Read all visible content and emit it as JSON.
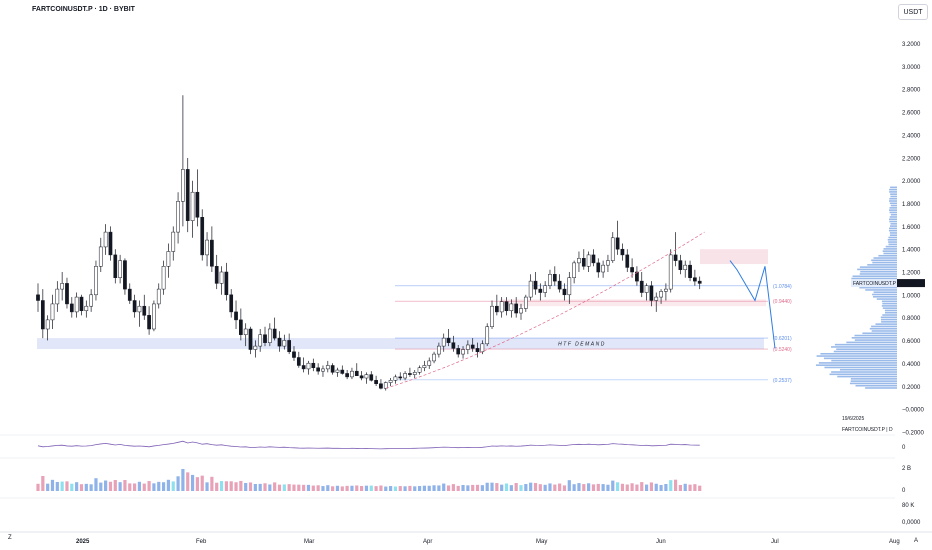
{
  "header": {
    "symbol_title": "FARTCOINUSDT.P · 1D · BYBIT",
    "quote_currency": "USDT"
  },
  "colors": {
    "up": "#ffffff",
    "down": "#131722",
    "wick": "#131722",
    "demand_zone": "#d7def5",
    "fib_blue": "#5b8def",
    "fib_pink": "#e06a8a",
    "projection": "#2f7de1",
    "volume_blue": "#8fb3e8",
    "volume_pink": "#e8a2b8",
    "volume_cyan": "#8ee0ee"
  },
  "annotations": {
    "demand_label": "HTF DEMAND",
    "last_price_tag": "FARTCOINUSDT.P",
    "last_price_value": "1.1028",
    "date_note": "19/6/2025",
    "symbol_note": "FARTCOINUSDT.P | D"
  },
  "fib_levels": [
    {
      "label": "(1.0784)",
      "value": 1.0784
    },
    {
      "label": "(0.9440)",
      "value": 0.944
    },
    {
      "label": "(0.6201)",
      "value": 0.6201
    },
    {
      "label": "(0.5240)",
      "value": 0.524
    },
    {
      "label": "(0.2537)",
      "value": 0.2537
    }
  ],
  "corner": {
    "left": "Z",
    "right": "A"
  },
  "chart_data": {
    "type": "candlestick",
    "title": "FARTCOINUSDT.P · 1D · BYBIT",
    "price_axis_labels": [
      "3.2000",
      "3.0000",
      "2.8000",
      "2.6000",
      "2.4000",
      "2.2000",
      "2.0000",
      "1.8000",
      "1.6000",
      "1.4000",
      "1.2000",
      "1.0000",
      "0.8000",
      "0.6000",
      "0.4000",
      "0.2000",
      "−0.0000",
      "−0.2000"
    ],
    "oscillator_axis_labels": [
      "0"
    ],
    "volume_axis_labels": [
      "2 B",
      "0"
    ],
    "volume2_axis_labels": [
      "80 K",
      "0,0000"
    ],
    "x_tick_labels": [
      "2025",
      "Feb",
      "Mar",
      "Apr",
      "May",
      "Jun",
      "Jul",
      "Aug"
    ],
    "ylim": [
      -0.3,
      3.35
    ],
    "htf_demand_zone": [
      0.524,
      0.6201
    ],
    "supply_zone": [
      1.27,
      1.4
    ],
    "minor_zone": [
      0.9,
      0.96
    ],
    "candles": [
      [
        1.0,
        1.1,
        0.85,
        0.95
      ],
      [
        0.95,
        1.05,
        0.62,
        0.7
      ],
      [
        0.7,
        0.82,
        0.6,
        0.78
      ],
      [
        0.78,
        1.0,
        0.7,
        0.92
      ],
      [
        0.92,
        1.12,
        0.85,
        1.05
      ],
      [
        1.05,
        1.2,
        0.95,
        1.1
      ],
      [
        1.1,
        1.15,
        0.88,
        0.92
      ],
      [
        0.92,
        0.98,
        0.8,
        0.85
      ],
      [
        0.85,
        1.02,
        0.8,
        0.98
      ],
      [
        0.98,
        1.0,
        0.82,
        0.86
      ],
      [
        0.86,
        0.95,
        0.8,
        0.9
      ],
      [
        0.9,
        1.05,
        0.85,
        1.0
      ],
      [
        1.0,
        1.3,
        0.95,
        1.25
      ],
      [
        1.25,
        1.5,
        1.2,
        1.42
      ],
      [
        1.42,
        1.62,
        1.35,
        1.55
      ],
      [
        1.55,
        1.6,
        1.3,
        1.35
      ],
      [
        1.35,
        1.4,
        1.1,
        1.15
      ],
      [
        1.15,
        1.35,
        1.1,
        1.3
      ],
      [
        1.3,
        1.32,
        1.0,
        1.05
      ],
      [
        1.05,
        1.1,
        0.92,
        0.95
      ],
      [
        0.95,
        1.0,
        0.8,
        0.85
      ],
      [
        0.85,
        0.95,
        0.72,
        0.9
      ],
      [
        0.9,
        1.0,
        0.78,
        0.82
      ],
      [
        0.82,
        0.9,
        0.65,
        0.7
      ],
      [
        0.7,
        0.95,
        0.68,
        0.92
      ],
      [
        0.92,
        1.1,
        0.88,
        1.05
      ],
      [
        1.05,
        1.3,
        1.0,
        1.25
      ],
      [
        1.25,
        1.45,
        1.15,
        1.38
      ],
      [
        1.38,
        1.6,
        1.3,
        1.55
      ],
      [
        1.55,
        1.9,
        1.45,
        1.82
      ],
      [
        1.82,
        2.75,
        1.6,
        2.1
      ],
      [
        2.1,
        2.2,
        1.55,
        1.65
      ],
      [
        1.65,
        2.0,
        1.5,
        1.9
      ],
      [
        1.9,
        2.1,
        1.6,
        1.68
      ],
      [
        1.68,
        1.75,
        1.3,
        1.35
      ],
      [
        1.35,
        1.55,
        1.25,
        1.48
      ],
      [
        1.48,
        1.6,
        1.2,
        1.25
      ],
      [
        1.25,
        1.35,
        1.05,
        1.1
      ],
      [
        1.1,
        1.25,
        1.0,
        1.2
      ],
      [
        1.2,
        1.28,
        0.95,
        1.0
      ],
      [
        1.0,
        1.05,
        0.8,
        0.85
      ],
      [
        0.85,
        0.95,
        0.7,
        0.78
      ],
      [
        0.78,
        0.88,
        0.6,
        0.65
      ],
      [
        0.65,
        0.75,
        0.55,
        0.7
      ],
      [
        0.7,
        0.72,
        0.48,
        0.52
      ],
      [
        0.52,
        0.6,
        0.45,
        0.55
      ],
      [
        0.55,
        0.7,
        0.5,
        0.65
      ],
      [
        0.65,
        0.72,
        0.55,
        0.58
      ],
      [
        0.58,
        0.75,
        0.55,
        0.7
      ],
      [
        0.7,
        0.8,
        0.6,
        0.62
      ],
      [
        0.62,
        0.68,
        0.5,
        0.55
      ],
      [
        0.55,
        0.65,
        0.52,
        0.6
      ],
      [
        0.6,
        0.66,
        0.48,
        0.5
      ],
      [
        0.5,
        0.55,
        0.42,
        0.45
      ],
      [
        0.45,
        0.5,
        0.36,
        0.38
      ],
      [
        0.38,
        0.45,
        0.32,
        0.35
      ],
      [
        0.35,
        0.42,
        0.3,
        0.4
      ],
      [
        0.4,
        0.44,
        0.33,
        0.36
      ],
      [
        0.36,
        0.4,
        0.3,
        0.33
      ],
      [
        0.33,
        0.38,
        0.28,
        0.35
      ],
      [
        0.35,
        0.42,
        0.32,
        0.38
      ],
      [
        0.38,
        0.4,
        0.3,
        0.32
      ],
      [
        0.32,
        0.36,
        0.28,
        0.34
      ],
      [
        0.34,
        0.38,
        0.3,
        0.31
      ],
      [
        0.31,
        0.34,
        0.26,
        0.28
      ],
      [
        0.28,
        0.36,
        0.26,
        0.33
      ],
      [
        0.33,
        0.4,
        0.3,
        0.29
      ],
      [
        0.29,
        0.33,
        0.25,
        0.27
      ],
      [
        0.27,
        0.32,
        0.22,
        0.3
      ],
      [
        0.3,
        0.33,
        0.24,
        0.25
      ],
      [
        0.25,
        0.29,
        0.2,
        0.22
      ],
      [
        0.22,
        0.26,
        0.17,
        0.18
      ],
      [
        0.18,
        0.24,
        0.16,
        0.23
      ],
      [
        0.23,
        0.27,
        0.2,
        0.25
      ],
      [
        0.25,
        0.3,
        0.22,
        0.28
      ],
      [
        0.28,
        0.32,
        0.25,
        0.27
      ],
      [
        0.27,
        0.33,
        0.25,
        0.31
      ],
      [
        0.31,
        0.36,
        0.28,
        0.3
      ],
      [
        0.3,
        0.34,
        0.27,
        0.32
      ],
      [
        0.32,
        0.38,
        0.3,
        0.36
      ],
      [
        0.36,
        0.42,
        0.33,
        0.38
      ],
      [
        0.38,
        0.45,
        0.35,
        0.42
      ],
      [
        0.42,
        0.5,
        0.4,
        0.48
      ],
      [
        0.48,
        0.58,
        0.45,
        0.55
      ],
      [
        0.55,
        0.66,
        0.5,
        0.62
      ],
      [
        0.62,
        0.7,
        0.55,
        0.58
      ],
      [
        0.58,
        0.64,
        0.5,
        0.53
      ],
      [
        0.53,
        0.56,
        0.45,
        0.48
      ],
      [
        0.48,
        0.55,
        0.44,
        0.52
      ],
      [
        0.52,
        0.6,
        0.48,
        0.56
      ],
      [
        0.56,
        0.62,
        0.5,
        0.53
      ],
      [
        0.53,
        0.58,
        0.45,
        0.5
      ],
      [
        0.5,
        0.6,
        0.48,
        0.57
      ],
      [
        0.57,
        0.75,
        0.55,
        0.72
      ],
      [
        0.72,
        0.95,
        0.7,
        0.9
      ],
      [
        0.9,
        1.0,
        0.82,
        0.85
      ],
      [
        0.85,
        0.98,
        0.8,
        0.94
      ],
      [
        0.94,
        0.98,
        0.82,
        0.86
      ],
      [
        0.86,
        0.96,
        0.8,
        0.92
      ],
      [
        0.92,
        0.98,
        0.8,
        0.84
      ],
      [
        0.84,
        0.92,
        0.78,
        0.88
      ],
      [
        0.88,
        1.0,
        0.85,
        0.98
      ],
      [
        0.98,
        1.18,
        0.95,
        1.12
      ],
      [
        1.12,
        1.2,
        1.0,
        1.05
      ],
      [
        1.05,
        1.1,
        0.95,
        1.02
      ],
      [
        1.02,
        1.12,
        0.98,
        1.08
      ],
      [
        1.08,
        1.22,
        1.05,
        1.18
      ],
      [
        1.18,
        1.25,
        1.08,
        1.12
      ],
      [
        1.12,
        1.18,
        1.02,
        1.05
      ],
      [
        1.05,
        1.1,
        0.95,
        1.0
      ],
      [
        1.0,
        1.2,
        0.92,
        1.15
      ],
      [
        1.15,
        1.3,
        1.1,
        1.28
      ],
      [
        1.28,
        1.38,
        1.2,
        1.32
      ],
      [
        1.32,
        1.4,
        1.22,
        1.25
      ],
      [
        1.25,
        1.38,
        1.2,
        1.35
      ],
      [
        1.35,
        1.4,
        1.25,
        1.28
      ],
      [
        1.28,
        1.32,
        1.15,
        1.2
      ],
      [
        1.2,
        1.3,
        1.15,
        1.26
      ],
      [
        1.26,
        1.35,
        1.2,
        1.3
      ],
      [
        1.3,
        1.55,
        1.28,
        1.5
      ],
      [
        1.5,
        1.65,
        1.35,
        1.4
      ],
      [
        1.4,
        1.45,
        1.3,
        1.35
      ],
      [
        1.35,
        1.4,
        1.2,
        1.24
      ],
      [
        1.24,
        1.32,
        1.15,
        1.2
      ],
      [
        1.2,
        1.25,
        1.08,
        1.12
      ],
      [
        1.12,
        1.2,
        0.98,
        1.02
      ],
      [
        1.02,
        1.1,
        0.95,
        1.08
      ],
      [
        1.08,
        1.12,
        0.9,
        0.95
      ],
      [
        0.95,
        1.02,
        0.85,
        0.98
      ],
      [
        0.98,
        1.05,
        0.92,
        1.03
      ],
      [
        1.03,
        1.1,
        0.95,
        1.05
      ],
      [
        1.05,
        1.4,
        1.02,
        1.35
      ],
      [
        1.35,
        1.55,
        1.25,
        1.3
      ],
      [
        1.3,
        1.35,
        1.18,
        1.22
      ],
      [
        1.22,
        1.3,
        1.15,
        1.26
      ],
      [
        1.26,
        1.3,
        1.12,
        1.15
      ],
      [
        1.15,
        1.22,
        1.08,
        1.12
      ],
      [
        1.12,
        1.16,
        1.05,
        1.1
      ]
    ],
    "projection_path": [
      [
        1.3,
        1.22
      ],
      [
        1.22,
        0.95
      ],
      [
        0.95,
        1.25
      ],
      [
        1.25,
        0.53
      ]
    ]
  }
}
